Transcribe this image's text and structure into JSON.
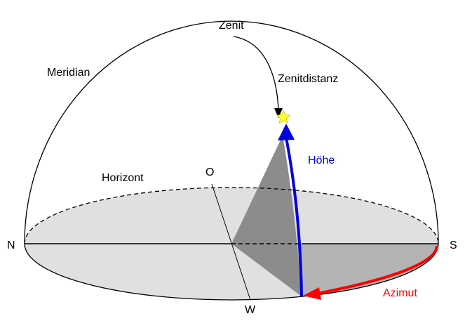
{
  "labels": {
    "zenith": "Zenit",
    "meridian": "Meridian",
    "zenith_distance": "Zenitdistanz",
    "altitude": "Höhe",
    "horizon": "Horizont",
    "east": "O",
    "north": "N",
    "south": "S",
    "west": "W",
    "azimuth": "Azimut"
  },
  "colors": {
    "altitude": "#0000e0",
    "azimuth": "#ff0000",
    "star": "#ffff33",
    "horizon_fill": "#e0e0e0",
    "sector_fill": "#b4b4b4",
    "vertical_plane_fill": "#8c8c8c"
  },
  "icons": {
    "star": "star-icon"
  }
}
